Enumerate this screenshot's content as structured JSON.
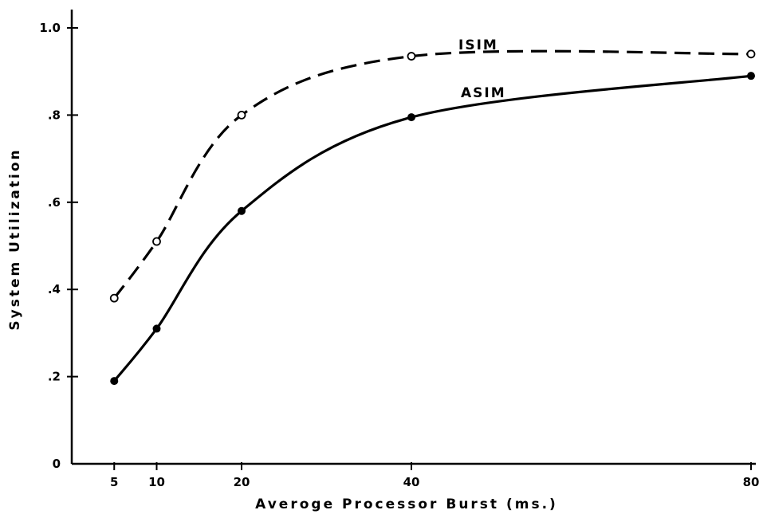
{
  "chart_data": {
    "type": "line",
    "title": "",
    "xlabel": "Averoge Processor Burst (ms.)",
    "ylabel": "System Utilization",
    "xlim": [
      0,
      80
    ],
    "ylim": [
      0,
      1.0
    ],
    "x_ticks": [
      {
        "value": 5,
        "label": "5"
      },
      {
        "value": 10,
        "label": "10"
      },
      {
        "value": 20,
        "label": "20"
      },
      {
        "value": 40,
        "label": "40"
      },
      {
        "value": 80,
        "label": "80"
      }
    ],
    "y_ticks": [
      {
        "value": 0,
        "label": "0"
      },
      {
        "value": 0.2,
        "label": ".2"
      },
      {
        "value": 0.4,
        "label": ".4"
      },
      {
        "value": 0.6,
        "label": ".6"
      },
      {
        "value": 0.8,
        "label": ".8"
      },
      {
        "value": 1.0,
        "label": "1.0"
      }
    ],
    "grid": false,
    "legend": "none",
    "series": [
      {
        "name": "ISIM",
        "style": "dashed",
        "marker": "open-circle",
        "x": [
          5,
          10,
          20,
          40,
          80
        ],
        "y": [
          0.38,
          0.51,
          0.8,
          0.935,
          0.94
        ]
      },
      {
        "name": "ASIM",
        "style": "solid",
        "marker": "filled-circle",
        "x": [
          5,
          10,
          20,
          40,
          80
        ],
        "y": [
          0.19,
          0.31,
          0.58,
          0.795,
          0.89
        ]
      }
    ]
  }
}
